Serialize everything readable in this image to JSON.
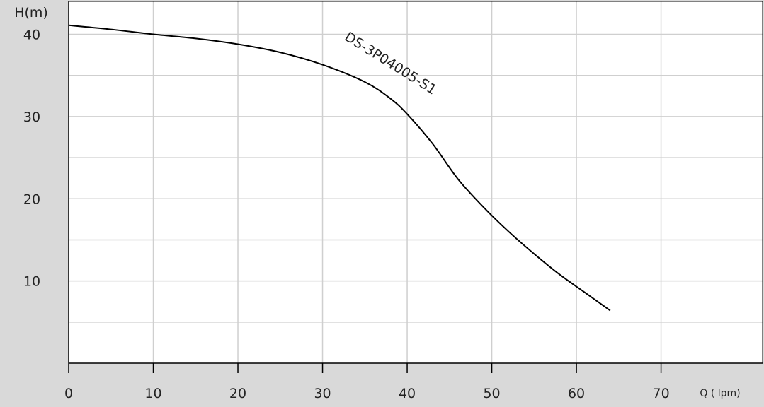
{
  "chart_data": {
    "type": "line",
    "ylabel": "H(m)",
    "xlabel": "Q ( lpm)",
    "xlim": [
      0,
      82
    ],
    "ylim": [
      0,
      44
    ],
    "x_ticks": [
      0,
      10,
      20,
      30,
      40,
      50,
      60,
      70
    ],
    "y_ticks": [
      10,
      20,
      30,
      40
    ],
    "grid": true,
    "series": [
      {
        "name": "DS-3P04005-S1",
        "color": "#000000",
        "points": [
          {
            "x": 0,
            "y": 41.1
          },
          {
            "x": 5,
            "y": 40.6
          },
          {
            "x": 10,
            "y": 40.0
          },
          {
            "x": 15,
            "y": 39.5
          },
          {
            "x": 20,
            "y": 38.8
          },
          {
            "x": 25,
            "y": 37.8
          },
          {
            "x": 30,
            "y": 36.3
          },
          {
            "x": 35,
            "y": 34.2
          },
          {
            "x": 38,
            "y": 32.2
          },
          {
            "x": 40,
            "y": 30.3
          },
          {
            "x": 43,
            "y": 26.7
          },
          {
            "x": 46,
            "y": 22.4
          },
          {
            "x": 49,
            "y": 19.0
          },
          {
            "x": 52,
            "y": 16.0
          },
          {
            "x": 55,
            "y": 13.3
          },
          {
            "x": 58,
            "y": 10.8
          },
          {
            "x": 61,
            "y": 8.6
          },
          {
            "x": 64,
            "y": 6.4
          }
        ]
      }
    ]
  }
}
